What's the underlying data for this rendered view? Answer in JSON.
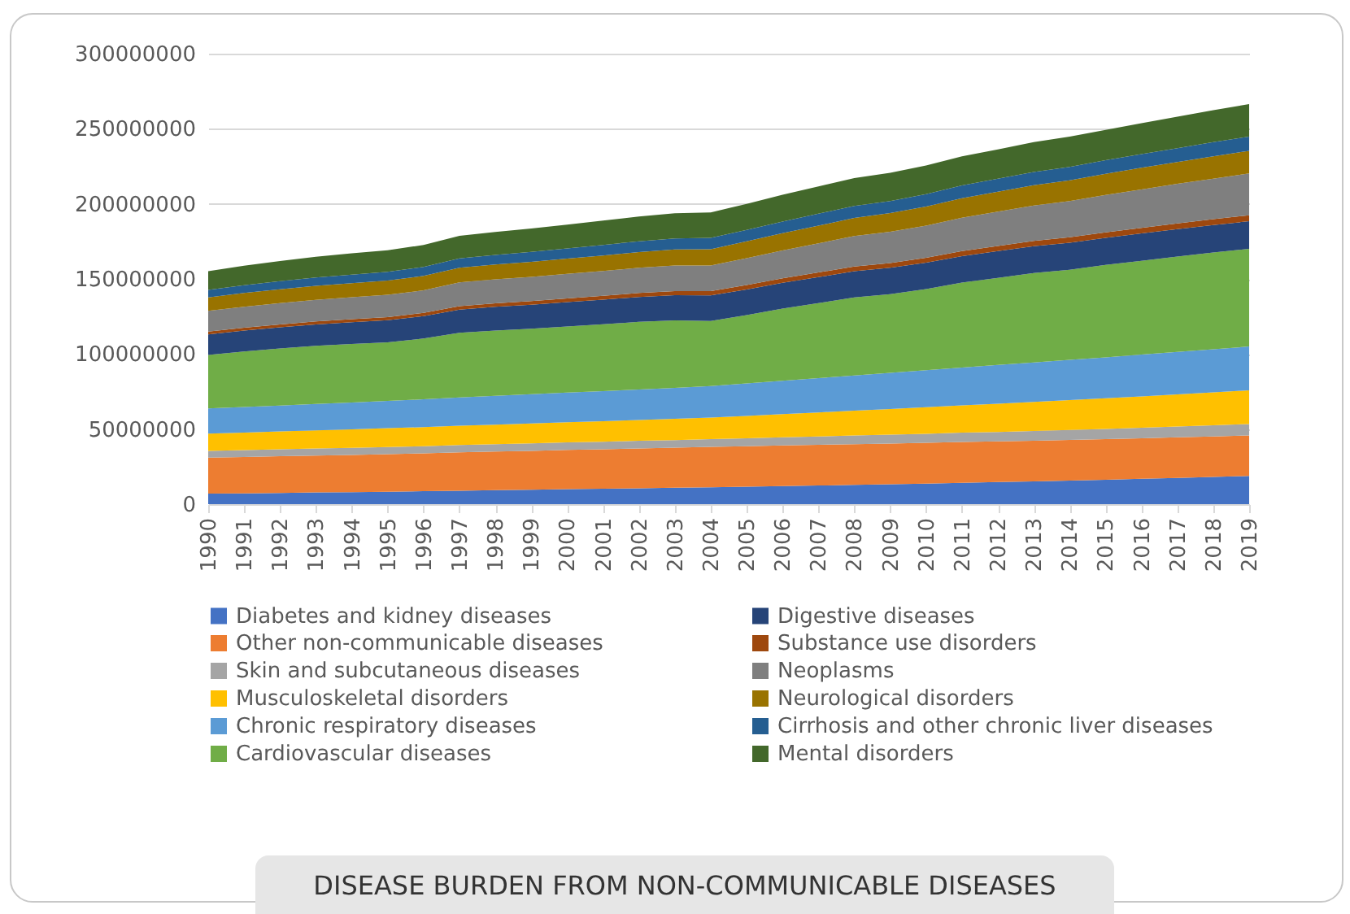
{
  "chart_data": {
    "type": "area",
    "stacked": true,
    "title": "DISEASE BURDEN FROM NON-COMMUNICABLE DISEASES",
    "categories": [
      "1990",
      "1991",
      "1992",
      "1993",
      "1994",
      "1995",
      "1996",
      "1997",
      "1998",
      "1999",
      "2000",
      "2001",
      "2002",
      "2003",
      "2004",
      "2005",
      "2006",
      "2007",
      "2008",
      "2009",
      "2010",
      "2011",
      "2012",
      "2013",
      "2014",
      "2015",
      "2016",
      "2017",
      "2018",
      "2019"
    ],
    "ylim": [
      0,
      300000000
    ],
    "yticks": [
      0,
      50000000,
      100000000,
      150000000,
      200000000,
      250000000,
      300000000
    ],
    "grid": "y",
    "legend": "bottom",
    "series": [
      {
        "name": "Diabetes and kidney diseases",
        "color": "#4472c4",
        "values": [
          7000000.0,
          7200000.0,
          7500000.0,
          7800000.0,
          8000000.0,
          8300000.0,
          8600000.0,
          9000000.0,
          9300000.0,
          9600000.0,
          10000000.0,
          10300000.0,
          10600000.0,
          10900000.0,
          11200000.0,
          11600000.0,
          12000000.0,
          12400000.0,
          12800000.0,
          13200000.0,
          13700000.0,
          14200000.0,
          14700000.0,
          15200000.0,
          15700000.0,
          16300000.0,
          16900000.0,
          17500000.0,
          18100000.0,
          18800000.0
        ]
      },
      {
        "name": "Other non-communicable diseases",
        "color": "#ed7d31",
        "values": [
          24000000.0,
          24200000.0,
          24400000.0,
          24600000.0,
          24800000.0,
          25000000.0,
          25200000.0,
          25500000.0,
          25700000.0,
          25900000.0,
          26100000.0,
          26300000.0,
          26500000.0,
          26700000.0,
          27000000.0,
          27000000.0,
          27100000.0,
          27100000.0,
          27200000.0,
          27200000.0,
          27200000.0,
          27200000.0,
          27100000.0,
          27100000.0,
          27100000.0,
          27000000.0,
          27000000.0,
          27000000.0,
          27000000.0,
          27000000.0
        ]
      },
      {
        "name": "Skin and subcutaneous diseases",
        "color": "#a5a5a5",
        "values": [
          4500000.0,
          4600000.0,
          4600000.0,
          4700000.0,
          4700000.0,
          4800000.0,
          4800000.0,
          4900000.0,
          4900000.0,
          5000000.0,
          5000000.0,
          5000000.0,
          5100000.0,
          5100000.0,
          5100000.0,
          5300000.0,
          5400000.0,
          5600000.0,
          5700000.0,
          5900000.0,
          6000000.0,
          6200000.0,
          6300000.0,
          6500000.0,
          6600000.0,
          6800000.0,
          7000000.0,
          7200000.0,
          7400000.0,
          7600000.0
        ]
      },
      {
        "name": "Musculoskeletal disorders",
        "color": "#ffc000",
        "values": [
          11500000.0,
          11700000.0,
          11900000.0,
          12100000.0,
          12300000.0,
          12500000.0,
          12700000.0,
          12900000.0,
          13100000.0,
          13300000.0,
          13500000.0,
          13700000.0,
          13900000.0,
          14100000.0,
          14400000.0,
          14900000.0,
          15500000.0,
          16000000.0,
          16600000.0,
          17100000.0,
          17700000.0,
          18200000.0,
          18800000.0,
          19300000.0,
          19900000.0,
          20400000.0,
          20900000.0,
          21400000.0,
          21900000.0,
          22400000.0
        ]
      },
      {
        "name": "Chronic respiratory diseases",
        "color": "#5b9bd5",
        "values": [
          16700000.0,
          17000000.0,
          17300000.0,
          17600000.0,
          17900000.0,
          18200000.0,
          18500000.0,
          18800000.0,
          19100000.0,
          19400000.0,
          19700000.0,
          20000000.0,
          20300000.0,
          20600000.0,
          21000000.0,
          21600000.0,
          22200000.0,
          22800000.0,
          23400000.0,
          24000000.0,
          24600000.0,
          25200000.0,
          25800000.0,
          26300000.0,
          26800000.0,
          27300000.0,
          27800000.0,
          28300000.0,
          28700000.0,
          29200000.0
        ]
      },
      {
        "name": "Cardiovascular diseases",
        "color": "#70ad47",
        "values": [
          35700000.0,
          37000000.0,
          38000000.0,
          38600000.0,
          39000000.0,
          39000000.0,
          40500000.0,
          43000000.0,
          43500000.0,
          43600000.0,
          44000000.0,
          44500000.0,
          45000000.0,
          45000000.0,
          43300000.0,
          45500000.0,
          48000000.0,
          50000000.0,
          52000000.0,
          52500000.0,
          54000000.0,
          56500000.0,
          58000000.0,
          59500000.0,
          60000000.0,
          61500000.0,
          62500000.0,
          63500000.0,
          64500000.0,
          65000000.0
        ]
      },
      {
        "name": "Digestive diseases",
        "color": "#264478",
        "values": [
          13700000.0,
          13900000.0,
          14100000.0,
          14300000.0,
          14500000.0,
          14700000.0,
          14900000.0,
          15500000.0,
          15800000.0,
          16000000.0,
          16200000.0,
          16400000.0,
          16600000.0,
          16800000.0,
          17000000.0,
          17100000.0,
          17200000.0,
          17300000.0,
          17400000.0,
          17500000.0,
          17600000.0,
          17700000.0,
          17800000.0,
          17900000.0,
          18000000.0,
          18100000.0,
          18200000.0,
          18300000.0,
          18300000.0,
          18400000.0
        ]
      },
      {
        "name": "Substance use disorders",
        "color": "#9e480e",
        "values": [
          1800000.0,
          1900000.0,
          1900000.0,
          2000000.0,
          2000000.0,
          2100000.0,
          2200000.0,
          2300000.0,
          2300000.0,
          2400000.0,
          2500000.0,
          2500000.0,
          2600000.0,
          2700000.0,
          2900000.0,
          3000000.0,
          3000000.0,
          3100000.0,
          3200000.0,
          3200000.0,
          3300000.0,
          3400000.0,
          3400000.0,
          3500000.0,
          3600000.0,
          3600000.0,
          3700000.0,
          3800000.0,
          3900000.0,
          4000000.0
        ]
      },
      {
        "name": "Neoplasms",
        "color": "#7f7f7f",
        "values": [
          13800000.0,
          14000000.0,
          14200000.0,
          14400000.0,
          14600000.0,
          14800000.0,
          15000000.0,
          15800000.0,
          16000000.0,
          16200000.0,
          16400000.0,
          16600000.0,
          16800000.0,
          17000000.0,
          17000000.0,
          17800000.0,
          18600000.0,
          19400000.0,
          20200000.0,
          20800000.0,
          21400000.0,
          22200000.0,
          22900000.0,
          23600000.0,
          24200000.0,
          24900000.0,
          25600000.0,
          26300000.0,
          27000000.0,
          27800000.0
        ]
      },
      {
        "name": "Neurological disorders",
        "color": "#997300",
        "values": [
          9000000.0,
          9100000.0,
          9200000.0,
          9300000.0,
          9400000.0,
          9500000.0,
          9600000.0,
          9800000.0,
          9900000.0,
          10000000.0,
          10100000.0,
          10300000.0,
          10500000.0,
          10700000.0,
          10900000.0,
          11200000.0,
          11500000.0,
          11800000.0,
          12100000.0,
          12400000.0,
          12700000.0,
          13000000.0,
          13300000.0,
          13500000.0,
          13800000.0,
          14100000.0,
          14400000.0,
          14600000.0,
          14900000.0,
          15100000.0
        ]
      },
      {
        "name": "Cirrhosis and other chronic liver diseases",
        "color": "#255e91",
        "values": [
          5000000.0,
          5200000.0,
          5400000.0,
          5500000.0,
          5700000.0,
          5900000.0,
          6000000.0,
          6200000.0,
          6400000.0,
          6600000.0,
          6800000.0,
          7000000.0,
          7200000.0,
          7300000.0,
          7500000.0,
          7600000.0,
          7700000.0,
          7900000.0,
          8000000.0,
          8100000.0,
          8300000.0,
          8500000.0,
          8600000.0,
          8800000.0,
          8900000.0,
          9000000.0,
          9100000.0,
          9200000.0,
          9400000.0,
          9500000.0
        ]
      },
      {
        "name": "Mental disorders",
        "color": "#43682b",
        "values": [
          12500000.0,
          13000000.0,
          13400000.0,
          13800000.0,
          14100000.0,
          14300000.0,
          14600000.0,
          15000000.0,
          15300000.0,
          15600000.0,
          15900000.0,
          16200000.0,
          16500000.0,
          16800000.0,
          17000000.0,
          17400000.0,
          17800000.0,
          18200000.0,
          18500000.0,
          18800000.0,
          19000000.0,
          19300000.0,
          19600000.0,
          19900000.0,
          20100000.0,
          20300000.0,
          20600000.0,
          20900000.0,
          21200000.0,
          21600000.0
        ]
      }
    ]
  }
}
